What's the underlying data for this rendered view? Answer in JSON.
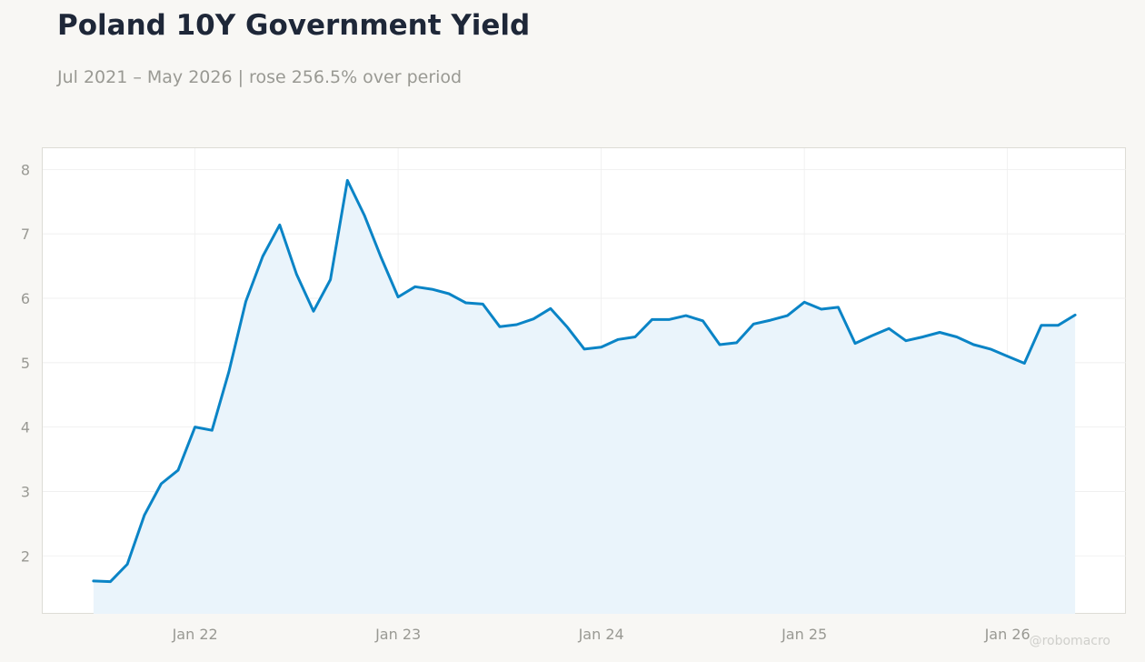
{
  "title": "Poland 10Y Government Yield",
  "subtitle": "Jul 2021 – May 2026 | rose 256.5% over period",
  "watermark": "@robomacro",
  "colors": {
    "background": "#f8f7f4",
    "plot_background": "#ffffff",
    "line": "#0a84c6",
    "fill": "#eaf4fb",
    "grid": "#eeeeee",
    "title": "#1e2738",
    "muted_text": "#999993"
  },
  "chart_data": {
    "type": "area",
    "title": "Poland 10Y Government Yield",
    "subtitle": "Jul 2021 – May 2026 | rose 256.5% over period",
    "xlabel": "",
    "ylabel": "",
    "x_ticks": [
      "Jan 22",
      "Jan 23",
      "Jan 24",
      "Jan 25",
      "Jan 26"
    ],
    "y_ticks": [
      2,
      3,
      4,
      5,
      6,
      7,
      8
    ],
    "ylim": [
      1.1,
      8.33
    ],
    "xlim": [
      "2021-04",
      "2026-08"
    ],
    "grid": true,
    "series": [
      {
        "x": [
          "2021-07",
          "2021-08",
          "2021-09",
          "2021-10",
          "2021-11",
          "2021-12",
          "2022-01",
          "2022-02",
          "2022-03",
          "2022-04",
          "2022-05",
          "2022-06",
          "2022-07",
          "2022-08",
          "2022-09",
          "2022-10",
          "2022-11",
          "2022-12",
          "2023-01",
          "2023-02",
          "2023-03",
          "2023-04",
          "2023-05",
          "2023-06",
          "2023-07",
          "2023-08",
          "2023-09",
          "2023-10",
          "2023-11",
          "2023-12",
          "2024-01",
          "2024-02",
          "2024-03",
          "2024-04",
          "2024-05",
          "2024-06",
          "2024-07",
          "2024-08",
          "2024-09",
          "2024-10",
          "2024-11",
          "2024-12",
          "2025-01",
          "2025-02",
          "2025-03",
          "2025-04",
          "2025-05",
          "2025-06",
          "2025-07",
          "2025-08",
          "2025-09",
          "2025-10",
          "2025-11",
          "2025-12",
          "2026-01",
          "2026-02",
          "2026-03",
          "2026-04",
          "2026-05"
        ],
        "values": [
          1.61,
          1.6,
          1.87,
          2.63,
          3.12,
          3.33,
          4.0,
          3.95,
          4.86,
          5.95,
          6.65,
          7.14,
          6.37,
          5.8,
          6.29,
          7.83,
          7.29,
          6.63,
          6.02,
          6.18,
          6.14,
          6.07,
          5.93,
          5.91,
          5.56,
          5.59,
          5.68,
          5.84,
          5.55,
          5.21,
          5.24,
          5.36,
          5.4,
          5.67,
          5.67,
          5.73,
          5.65,
          5.28,
          5.31,
          5.6,
          5.66,
          5.73,
          5.94,
          5.83,
          5.86,
          5.3,
          5.42,
          5.53,
          5.34,
          5.4,
          5.47,
          5.4,
          5.28,
          5.21,
          5.1,
          4.99,
          5.58,
          5.58,
          5.74
        ]
      }
    ]
  }
}
